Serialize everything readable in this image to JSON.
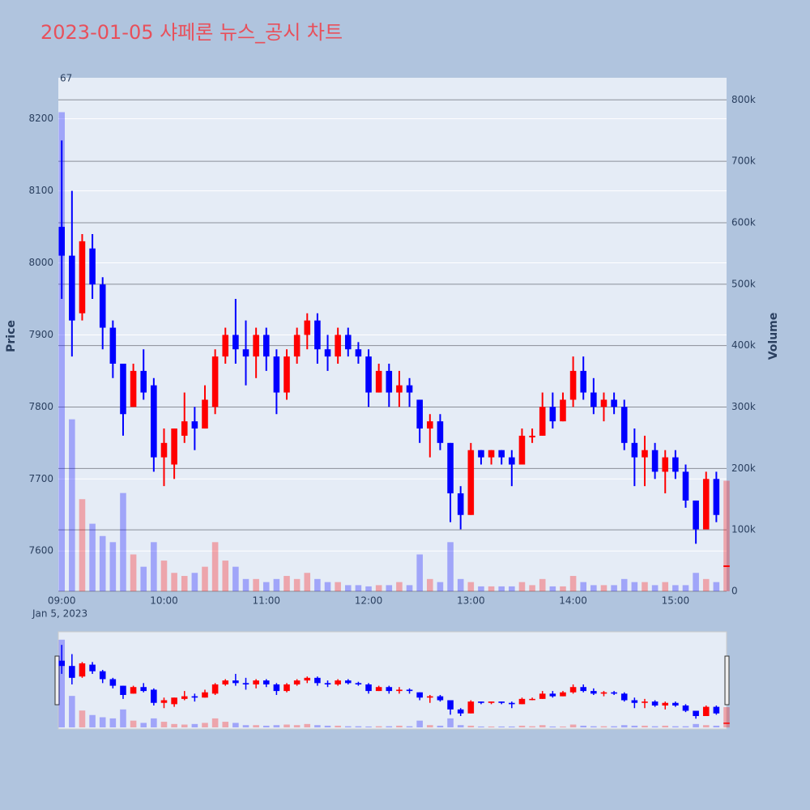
{
  "chart_data": {
    "type": "candlestick",
    "title": "2023-01-05 샤페론 뉴스_공시 차트",
    "annotation": "67",
    "y_label": "Price",
    "y2_label": "Volume",
    "x_date_label": "Jan 5, 2023",
    "increasing_color": "#ff0000",
    "decreasing_color": "#0000ff",
    "x": [
      "09:00",
      "09:06",
      "09:12",
      "09:18",
      "09:24",
      "09:30",
      "09:36",
      "09:42",
      "09:48",
      "09:54",
      "10:00",
      "10:06",
      "10:12",
      "10:18",
      "10:24",
      "10:30",
      "10:36",
      "10:42",
      "10:48",
      "10:54",
      "11:00",
      "11:06",
      "11:12",
      "11:18",
      "11:24",
      "11:30",
      "11:36",
      "11:42",
      "11:48",
      "11:54",
      "12:00",
      "12:06",
      "12:12",
      "12:18",
      "12:24",
      "12:30",
      "12:36",
      "12:42",
      "12:48",
      "12:54",
      "13:00",
      "13:06",
      "13:12",
      "13:18",
      "13:24",
      "13:30",
      "13:36",
      "13:42",
      "13:48",
      "13:54",
      "14:00",
      "14:06",
      "14:12",
      "14:18",
      "14:24",
      "14:30",
      "14:36",
      "14:42",
      "14:48",
      "14:54",
      "15:00",
      "15:06",
      "15:12",
      "15:18",
      "15:24",
      "15:30"
    ],
    "open": [
      8050,
      8010,
      7930,
      8020,
      7970,
      7910,
      7860,
      7800,
      7850,
      7830,
      7730,
      7720,
      7760,
      7780,
      7770,
      7800,
      7870,
      7900,
      7880,
      7870,
      7900,
      7870,
      7820,
      7870,
      7900,
      7920,
      7880,
      7870,
      7900,
      7880,
      7870,
      7820,
      7850,
      7820,
      7830,
      7810,
      7770,
      7780,
      7750,
      7680,
      7650,
      7740,
      7730,
      7740,
      7730,
      7720,
      7760,
      7760,
      7800,
      7780,
      7810,
      7850,
      7820,
      7800,
      7810,
      7800,
      7750,
      7730,
      7740,
      7710,
      7730,
      7710,
      7670,
      7630,
      7700,
      7580
    ],
    "high": [
      8170,
      8100,
      8040,
      8040,
      7980,
      7920,
      7860,
      7860,
      7880,
      7840,
      7770,
      7770,
      7820,
      7800,
      7830,
      7880,
      7910,
      7950,
      7920,
      7910,
      7910,
      7880,
      7880,
      7910,
      7930,
      7930,
      7900,
      7910,
      7910,
      7890,
      7880,
      7860,
      7860,
      7850,
      7840,
      7810,
      7790,
      7790,
      7750,
      7690,
      7750,
      7740,
      7740,
      7740,
      7740,
      7770,
      7770,
      7820,
      7820,
      7820,
      7870,
      7870,
      7840,
      7820,
      7820,
      7810,
      7770,
      7760,
      7750,
      7740,
      7740,
      7720,
      7670,
      7710,
      7710,
      7580
    ],
    "low": [
      7950,
      7870,
      7920,
      7950,
      7880,
      7840,
      7760,
      7800,
      7810,
      7710,
      7690,
      7700,
      7750,
      7740,
      7770,
      7790,
      7860,
      7860,
      7830,
      7840,
      7850,
      7790,
      7810,
      7860,
      7880,
      7860,
      7850,
      7860,
      7870,
      7860,
      7800,
      7820,
      7800,
      7800,
      7800,
      7750,
      7730,
      7740,
      7640,
      7630,
      7650,
      7720,
      7720,
      7720,
      7690,
      7720,
      7750,
      7760,
      7770,
      7780,
      7800,
      7810,
      7790,
      7780,
      7790,
      7740,
      7690,
      7690,
      7700,
      7680,
      7700,
      7660,
      7610,
      7630,
      7640,
      7580
    ],
    "close": [
      8010,
      7920,
      8030,
      7970,
      7910,
      7860,
      7790,
      7850,
      7820,
      7730,
      7750,
      7770,
      7780,
      7770,
      7810,
      7870,
      7900,
      7880,
      7870,
      7900,
      7870,
      7820,
      7870,
      7900,
      7920,
      7880,
      7870,
      7900,
      7880,
      7870,
      7820,
      7850,
      7820,
      7830,
      7820,
      7770,
      7780,
      7750,
      7680,
      7650,
      7740,
      7730,
      7740,
      7730,
      7720,
      7760,
      7760,
      7800,
      7780,
      7810,
      7850,
      7820,
      7800,
      7810,
      7800,
      7750,
      7730,
      7740,
      7710,
      7730,
      7710,
      7670,
      7630,
      7700,
      7650,
      7580
    ],
    "volume": [
      780000,
      280000,
      150000,
      110000,
      90000,
      80000,
      160000,
      60000,
      40000,
      80000,
      50000,
      30000,
      25000,
      30000,
      40000,
      80000,
      50000,
      40000,
      20000,
      20000,
      15000,
      20000,
      25000,
      20000,
      30000,
      20000,
      15000,
      15000,
      10000,
      10000,
      8000,
      10000,
      10000,
      15000,
      10000,
      60000,
      20000,
      15000,
      80000,
      20000,
      15000,
      8000,
      8000,
      8000,
      8000,
      15000,
      10000,
      20000,
      8000,
      8000,
      25000,
      15000,
      10000,
      10000,
      10000,
      20000,
      15000,
      15000,
      10000,
      15000,
      10000,
      10000,
      30000,
      20000,
      15000,
      180000
    ],
    "xlim": [
      "08:58",
      "15:30"
    ],
    "xticks": [
      "09:00",
      "10:00",
      "11:00",
      "12:00",
      "13:00",
      "14:00",
      "15:00"
    ],
    "ylim": [
      7544,
      8257
    ],
    "yticks": [
      7600,
      7700,
      7800,
      7900,
      8000,
      8100,
      8200
    ],
    "y2lim": [
      0,
      836000
    ],
    "y2ticks": [
      0,
      {
        "value": 100000,
        "label": "100k"
      },
      {
        "value": 200000,
        "label": "200k"
      },
      {
        "value": 300000,
        "label": "300k"
      },
      {
        "value": 400000,
        "label": "400k"
      },
      {
        "value": 500000,
        "label": "500k"
      },
      {
        "value": 600000,
        "label": "600k"
      },
      {
        "value": 700000,
        "label": "700k"
      },
      {
        "value": 800000,
        "label": "800k"
      }
    ]
  }
}
